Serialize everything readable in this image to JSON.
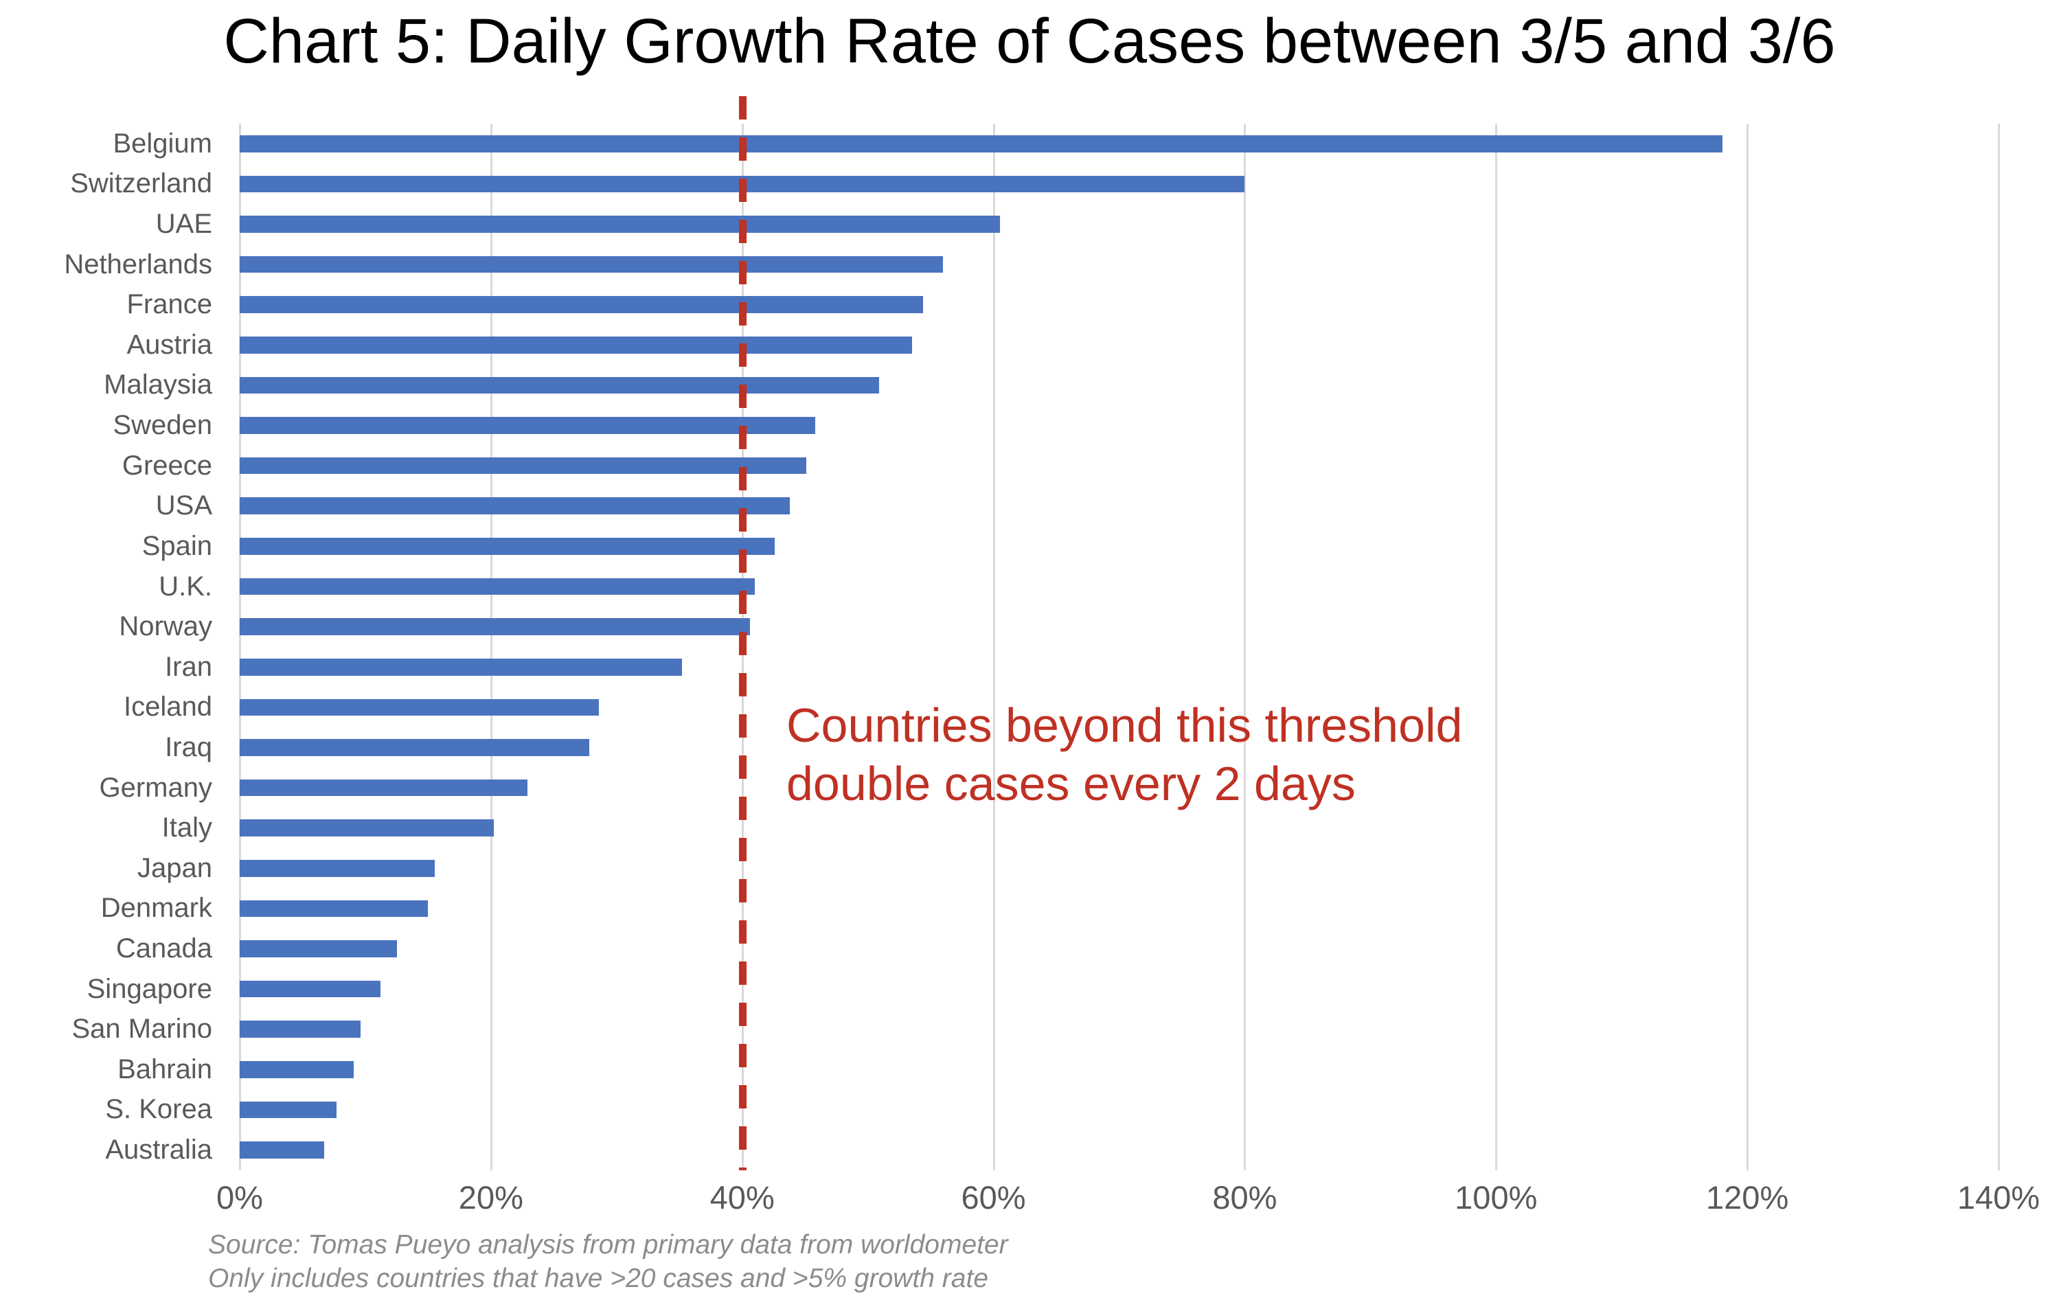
{
  "title": "Chart 5: Daily Growth Rate of Cases between 3/5 and 3/6",
  "annotation": {
    "line1": "Countries beyond this threshold",
    "line2": "double cases every 2 days"
  },
  "source": {
    "line1": "Source: Tomas Pueyo analysis from primary data from worldometer",
    "line2": "Only includes countries that have >20 cases and >5% growth rate"
  },
  "colors": {
    "bar": "#4a73be",
    "threshold_red": "#bf3123",
    "gridline": "#d9d9d9",
    "axis_label": "#595959",
    "category_label": "#595959",
    "source_text": "#8c8c8c",
    "title_text": "#000000"
  },
  "chart_data": {
    "type": "bar",
    "orientation": "horizontal",
    "title": "Chart 5: Daily Growth Rate of Cases between 3/5 and 3/6",
    "xlabel": "",
    "ylabel": "",
    "unit": "percent",
    "xlim": [
      0,
      140
    ],
    "x_tick_step": 20,
    "x_tick_labels": [
      "0%",
      "20%",
      "40%",
      "60%",
      "80%",
      "100%",
      "120%",
      "140%"
    ],
    "grid": true,
    "legend": false,
    "threshold_line": {
      "x": 40,
      "style": "dashed",
      "color": "#bf3123",
      "annotation": "Countries beyond this threshold double cases every 2 days"
    },
    "categories": [
      "Belgium",
      "Switzerland",
      "UAE",
      "Netherlands",
      "France",
      "Austria",
      "Malaysia",
      "Sweden",
      "Greece",
      "USA",
      "Spain",
      "U.K.",
      "Norway",
      "Iran",
      "Iceland",
      "Iraq",
      "Germany",
      "Italy",
      "Japan",
      "Denmark",
      "Canada",
      "Singapore",
      "San Marino",
      "Bahrain",
      "S. Korea",
      "Australia"
    ],
    "values": [
      118,
      80,
      60.5,
      56,
      54.4,
      53.5,
      50.9,
      45.8,
      45.1,
      43.8,
      42.6,
      41,
      40.6,
      35.2,
      28.6,
      27.8,
      22.9,
      20.2,
      15.5,
      15,
      12.5,
      11.2,
      9.6,
      9.1,
      7.7,
      6.7
    ]
  }
}
